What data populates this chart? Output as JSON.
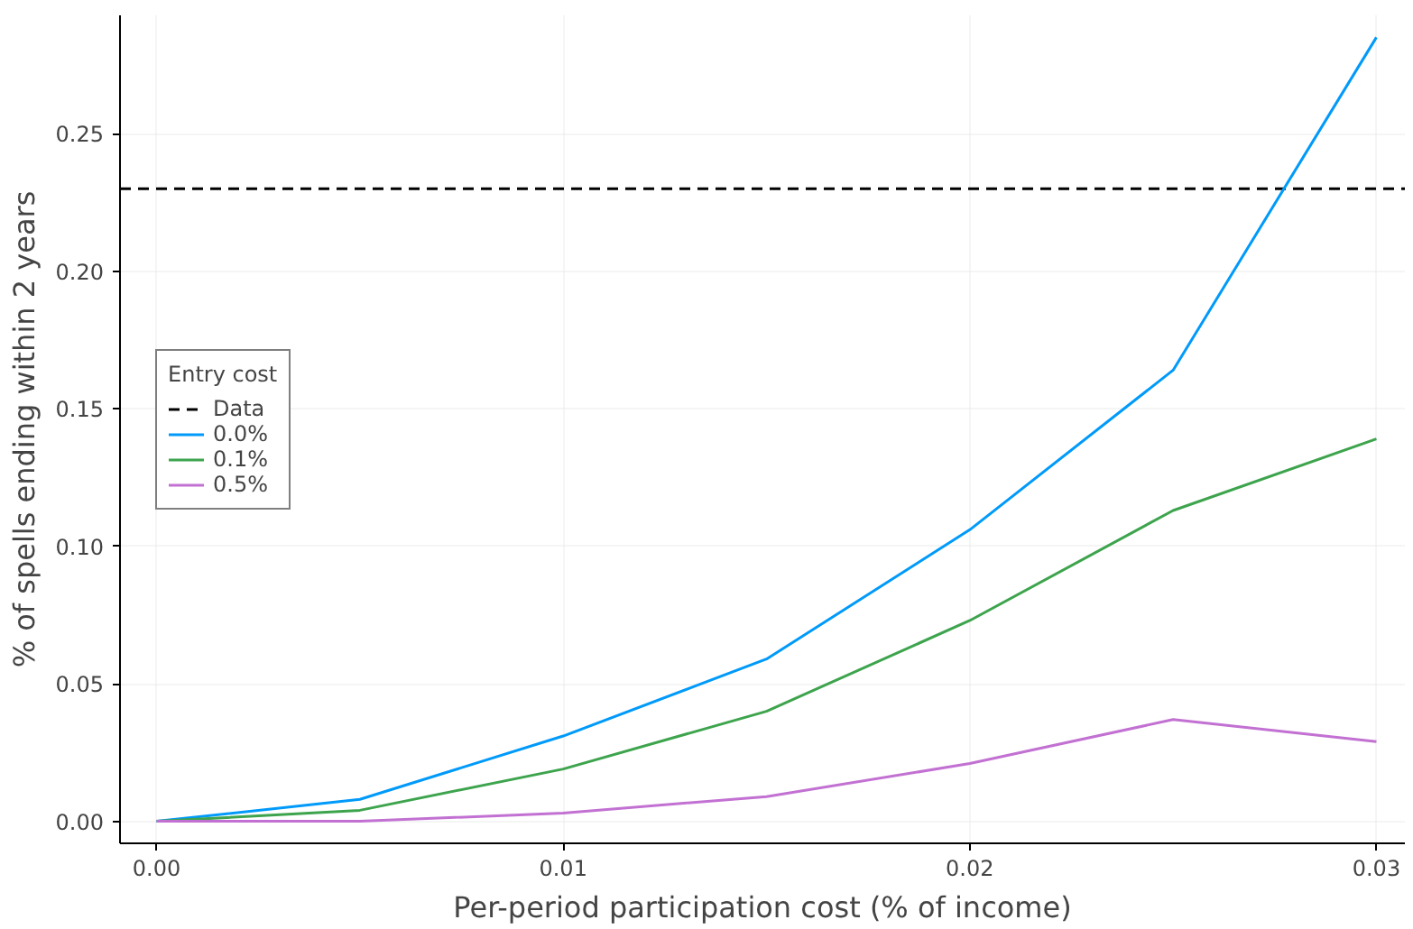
{
  "chart_data": {
    "type": "line",
    "xlabel": "Per-period participation cost (% of income)",
    "ylabel": "% of spells ending within 2 years",
    "legend_title": "Entry cost",
    "x": [
      0,
      0.005,
      0.01,
      0.015,
      0.02,
      0.025,
      0.03
    ],
    "series": [
      {
        "name": "0.0%",
        "color": "#009afa",
        "values": [
          0.0,
          0.008,
          0.031,
          0.059,
          0.106,
          0.164,
          0.285
        ]
      },
      {
        "name": "0.1%",
        "color": "#3da44d",
        "values": [
          0.0,
          0.004,
          0.019,
          0.04,
          0.073,
          0.113,
          0.139
        ]
      },
      {
        "name": "0.5%",
        "color": "#c271d2",
        "values": [
          0.0,
          0.0,
          0.003,
          0.009,
          0.021,
          0.037,
          0.029
        ]
      }
    ],
    "ref_lines": [
      {
        "axis": "y",
        "value": 0.23,
        "label": "Data",
        "color": "#000000",
        "line_style": "dashed"
      }
    ],
    "xlim": [
      -0.0009,
      0.0307
    ],
    "ylim": [
      -0.008,
      0.293
    ],
    "xticks": [
      {
        "value": 0,
        "label": "0.00"
      },
      0.01,
      0.02,
      0.03
    ],
    "yticks": [
      {
        "value": 0,
        "label": "0.00"
      },
      0.05,
      {
        "value": 0.1,
        "label": "0.10"
      },
      0.15,
      {
        "value": 0.2,
        "label": "0.20"
      },
      0.25
    ],
    "grid": true,
    "legend": "left",
    "line_style": "solid",
    "marker": "none"
  }
}
